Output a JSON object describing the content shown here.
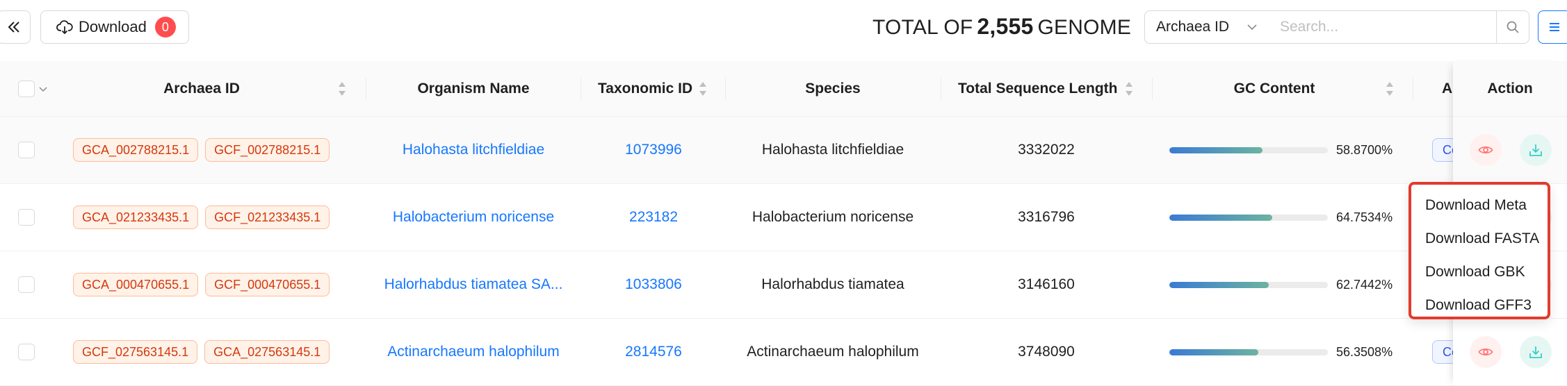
{
  "toolbar": {
    "download_label": "Download",
    "download_count": "0",
    "total_prefix": "TOTAL OF",
    "total_count": "2,555",
    "total_suffix": "GENOME",
    "id_select_value": "Archaea ID",
    "search_placeholder": "Search..."
  },
  "table": {
    "headers": {
      "archaea_id": "Archaea ID",
      "organism_name": "Organism Name",
      "taxonomic_id": "Taxonomic ID",
      "species": "Species",
      "total_sequence_length": "Total Sequence Length",
      "gc_content": "GC Content",
      "truncated": "A",
      "action": "Action"
    },
    "rows": [
      {
        "ids": [
          "GCA_002788215.1",
          "GCF_002788215.1"
        ],
        "organism": "Halohasta litchfieldiae",
        "taxid": "1073996",
        "species": "Halohasta litchfieldiae",
        "length": "3332022",
        "gc": "58.8700%",
        "gc_fraction": 0.5887,
        "status_tag": "Co"
      },
      {
        "ids": [
          "GCA_021233435.1",
          "GCF_021233435.1"
        ],
        "organism": "Halobacterium noricense",
        "taxid": "223182",
        "species": "Halobacterium noricense",
        "length": "3316796",
        "gc": "64.7534%",
        "gc_fraction": 0.6475,
        "status_tag": ""
      },
      {
        "ids": [
          "GCA_000470655.1",
          "GCF_000470655.1"
        ],
        "organism": "Halorhabdus tiamatea SA...",
        "taxid": "1033806",
        "species": "Halorhabdus tiamatea",
        "length": "3146160",
        "gc": "62.7442%",
        "gc_fraction": 0.6274,
        "status_tag": ""
      },
      {
        "ids": [
          "GCF_027563145.1",
          "GCA_027563145.1"
        ],
        "organism": "Actinarchaeum halophilum",
        "taxid": "2814576",
        "species": "Actinarchaeum halophilum",
        "length": "3748090",
        "gc": "56.3508%",
        "gc_fraction": 0.5635,
        "status_tag": "Co"
      }
    ]
  },
  "dropdown": {
    "items": [
      "Download Meta",
      "Download FASTA",
      "Download GBK",
      "Download GFF3"
    ]
  },
  "colors": {
    "accent": "#1677ff",
    "badge": "#ff4d4f",
    "tag_border": "#ffbb96",
    "tag_text": "#d4380d",
    "highlight_outline": "#e23b2e"
  },
  "icons": {
    "collapse": "double-chevron-left-icon",
    "download": "cloud-download-icon",
    "search": "search-icon",
    "menu": "menu-icon",
    "view": "eye-icon",
    "get": "download-tray-icon"
  }
}
